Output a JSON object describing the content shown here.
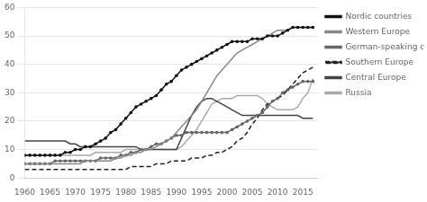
{
  "chart_data": {
    "type": "line",
    "x": [
      1960,
      1961,
      1962,
      1963,
      1964,
      1965,
      1966,
      1967,
      1968,
      1969,
      1970,
      1971,
      1972,
      1973,
      1974,
      1975,
      1976,
      1977,
      1978,
      1979,
      1980,
      1981,
      1982,
      1983,
      1984,
      1985,
      1986,
      1987,
      1988,
      1989,
      1990,
      1991,
      1992,
      1993,
      1994,
      1995,
      1996,
      1997,
      1998,
      1999,
      2000,
      2001,
      2002,
      2003,
      2004,
      2005,
      2006,
      2007,
      2008,
      2009,
      2010,
      2011,
      2012,
      2013,
      2014,
      2015,
      2016,
      2017
    ],
    "xlim": [
      1960,
      2018
    ],
    "xticks": [
      1960,
      1965,
      1970,
      1975,
      1980,
      1985,
      1990,
      1995,
      2000,
      2005,
      2010,
      2015
    ],
    "ylim": [
      0,
      60
    ],
    "yticks": [
      0,
      10,
      20,
      30,
      40,
      50,
      60
    ],
    "grid": "y",
    "legend": "right",
    "series": [
      {
        "name": "Nordic countries",
        "color": "#111111",
        "line_style": "solid",
        "marker": "point",
        "values": [
          8,
          8,
          8,
          8,
          8,
          8,
          8,
          8,
          9,
          9,
          10,
          10,
          11,
          11,
          12,
          13,
          14,
          16,
          17,
          19,
          21,
          23,
          25,
          26,
          27,
          28,
          29,
          31,
          33,
          34,
          36,
          38,
          39,
          40,
          41,
          42,
          43,
          44,
          45,
          46,
          47,
          48,
          48,
          48,
          48,
          49,
          49,
          49,
          50,
          50,
          50,
          51,
          52,
          53,
          53,
          53,
          53,
          53
        ]
      },
      {
        "name": "Western Europe",
        "color": "#888888",
        "line_style": "solid",
        "values": [
          5,
          5,
          5,
          5,
          5,
          5,
          5,
          5,
          5,
          5,
          5,
          5,
          6,
          6,
          6,
          6,
          6,
          6,
          7,
          7,
          8,
          8,
          9,
          9,
          10,
          10,
          11,
          12,
          13,
          14,
          16,
          18,
          20,
          22,
          24,
          27,
          30,
          33,
          36,
          38,
          40,
          42,
          44,
          45,
          46,
          47,
          48,
          49,
          50,
          51,
          52,
          52,
          52,
          53,
          53,
          53,
          53,
          53
        ]
      },
      {
        "name": "German-speaking countries",
        "color": "#666666",
        "line_style": "solid",
        "marker": "point",
        "values": [
          5,
          5,
          5,
          5,
          5,
          5,
          6,
          6,
          6,
          6,
          6,
          6,
          6,
          6,
          6,
          7,
          7,
          7,
          7,
          8,
          8,
          9,
          9,
          10,
          10,
          11,
          12,
          12,
          13,
          14,
          15,
          15,
          16,
          16,
          16,
          16,
          16,
          16,
          16,
          16,
          16,
          17,
          18,
          19,
          20,
          21,
          22,
          23,
          25,
          27,
          28,
          30,
          31,
          32,
          33,
          34,
          34,
          34
        ]
      },
      {
        "name": "Southern Europe",
        "color": "#222222",
        "line_style": "dashed",
        "values": [
          3,
          3,
          3,
          3,
          3,
          3,
          3,
          3,
          3,
          3,
          3,
          3,
          3,
          3,
          3,
          3,
          3,
          3,
          3,
          3,
          3,
          4,
          4,
          4,
          4,
          4,
          5,
          5,
          5,
          6,
          6,
          6,
          6,
          7,
          7,
          7,
          8,
          8,
          9,
          9,
          10,
          11,
          13,
          14,
          16,
          19,
          21,
          24,
          26,
          27,
          28,
          29,
          31,
          33,
          35,
          37,
          38,
          39
        ]
      },
      {
        "name": "Central Europe",
        "color": "#444444",
        "line_style": "solid",
        "values": [
          13,
          13,
          13,
          13,
          13,
          13,
          13,
          13,
          13,
          12,
          12,
          11,
          11,
          11,
          11,
          11,
          11,
          11,
          11,
          11,
          11,
          11,
          11,
          10,
          10,
          10,
          10,
          10,
          10,
          10,
          10,
          14,
          18,
          22,
          25,
          27,
          28,
          28,
          27,
          26,
          25,
          24,
          23,
          22,
          22,
          22,
          22,
          22,
          22,
          22,
          22,
          22,
          22,
          22,
          22,
          21,
          21,
          21
        ]
      },
      {
        "name": "Russia",
        "color": "#aaaaaa",
        "line_style": "solid",
        "values": [
          8,
          8,
          8,
          8,
          8,
          8,
          8,
          8,
          8,
          8,
          8,
          8,
          8,
          8,
          9,
          9,
          9,
          9,
          9,
          9,
          10,
          10,
          10,
          10,
          10,
          10,
          10,
          10,
          10,
          10,
          10,
          11,
          13,
          15,
          17,
          20,
          23,
          26,
          27,
          28,
          28,
          28,
          29,
          29,
          29,
          29,
          29,
          28,
          26,
          25,
          24,
          24,
          24,
          24,
          25,
          28,
          30,
          35
        ]
      }
    ]
  }
}
